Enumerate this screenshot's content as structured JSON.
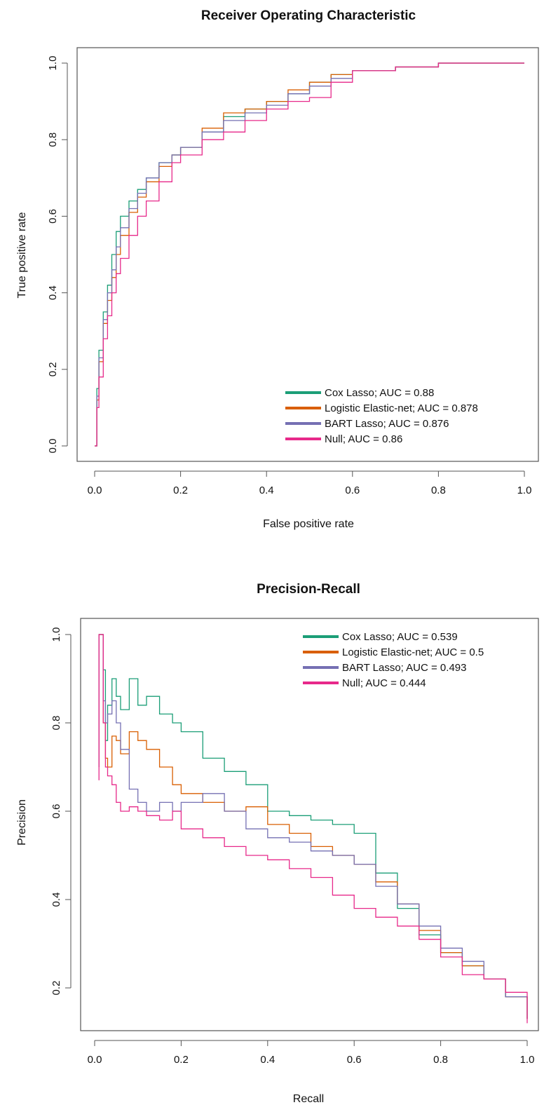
{
  "colors": {
    "cox": "#1b9e77",
    "logistic": "#d95f02",
    "bart": "#7570b3",
    "null": "#e7298a",
    "axis": "#555555"
  },
  "chart_data": [
    {
      "type": "line",
      "title": "Receiver Operating Characteristic",
      "xlabel": "False positive rate",
      "ylabel": "True positive rate",
      "xlim": [
        0,
        1
      ],
      "ylim": [
        0,
        1
      ],
      "xticks": [
        0,
        0.2,
        0.4,
        0.6,
        0.8,
        1
      ],
      "xtick_labels": [
        "0.0",
        "0.2",
        "0.4",
        "0.6",
        "0.8",
        "1.0"
      ],
      "yticks": [
        0,
        0.2,
        0.4,
        0.6,
        0.8,
        1
      ],
      "ytick_labels": [
        "0.0",
        "0.2",
        "0.4",
        "0.6",
        "0.8",
        "1.0"
      ],
      "grid": false,
      "legend": "bottom-right",
      "series": [
        {
          "name": "Cox Lasso; AUC = 0.88",
          "color_key": "cox",
          "x": [
            0,
            0.005,
            0.01,
            0.02,
            0.03,
            0.04,
            0.05,
            0.06,
            0.08,
            0.1,
            0.12,
            0.15,
            0.18,
            0.2,
            0.25,
            0.3,
            0.35,
            0.4,
            0.45,
            0.5,
            0.55,
            0.6,
            0.7,
            0.8,
            0.9,
            1
          ],
          "y": [
            0,
            0.15,
            0.25,
            0.35,
            0.42,
            0.5,
            0.56,
            0.6,
            0.64,
            0.67,
            0.7,
            0.74,
            0.76,
            0.78,
            0.82,
            0.86,
            0.88,
            0.9,
            0.92,
            0.95,
            0.97,
            0.98,
            0.99,
            1,
            1,
            1
          ]
        },
        {
          "name": "Logistic Elastic-net; AUC = 0.878",
          "color_key": "logistic",
          "x": [
            0,
            0.005,
            0.01,
            0.02,
            0.03,
            0.04,
            0.05,
            0.06,
            0.08,
            0.1,
            0.12,
            0.15,
            0.18,
            0.2,
            0.25,
            0.3,
            0.35,
            0.4,
            0.45,
            0.5,
            0.55,
            0.6,
            0.7,
            0.8,
            0.9,
            1
          ],
          "y": [
            0,
            0.12,
            0.22,
            0.32,
            0.38,
            0.44,
            0.5,
            0.55,
            0.61,
            0.65,
            0.69,
            0.73,
            0.76,
            0.78,
            0.83,
            0.87,
            0.88,
            0.9,
            0.93,
            0.95,
            0.97,
            0.98,
            0.99,
            1,
            1,
            1
          ]
        },
        {
          "name": "BART Lasso; AUC = 0.876",
          "color_key": "bart",
          "x": [
            0,
            0.005,
            0.01,
            0.02,
            0.03,
            0.04,
            0.05,
            0.06,
            0.08,
            0.1,
            0.12,
            0.15,
            0.18,
            0.2,
            0.25,
            0.3,
            0.35,
            0.4,
            0.45,
            0.5,
            0.55,
            0.6,
            0.7,
            0.8,
            0.9,
            1
          ],
          "y": [
            0,
            0.13,
            0.23,
            0.33,
            0.4,
            0.46,
            0.52,
            0.57,
            0.62,
            0.66,
            0.7,
            0.74,
            0.76,
            0.78,
            0.82,
            0.85,
            0.87,
            0.89,
            0.92,
            0.94,
            0.96,
            0.98,
            0.99,
            1,
            1,
            1
          ]
        },
        {
          "name": "Null; AUC = 0.86",
          "color_key": "null",
          "x": [
            0,
            0.005,
            0.01,
            0.02,
            0.03,
            0.04,
            0.05,
            0.06,
            0.08,
            0.1,
            0.12,
            0.15,
            0.18,
            0.2,
            0.25,
            0.3,
            0.35,
            0.4,
            0.45,
            0.5,
            0.55,
            0.6,
            0.7,
            0.8,
            0.9,
            1
          ],
          "y": [
            0,
            0.1,
            0.18,
            0.28,
            0.34,
            0.4,
            0.45,
            0.49,
            0.55,
            0.6,
            0.64,
            0.69,
            0.74,
            0.76,
            0.8,
            0.82,
            0.85,
            0.88,
            0.9,
            0.91,
            0.95,
            0.98,
            0.99,
            1,
            1,
            1
          ]
        }
      ]
    },
    {
      "type": "line",
      "title": "Precision-Recall",
      "xlabel": "Recall",
      "ylabel": "Precision",
      "xlim": [
        0,
        1
      ],
      "ylim": [
        0.1,
        1
      ],
      "xticks": [
        0,
        0.2,
        0.4,
        0.6,
        0.8,
        1
      ],
      "xtick_labels": [
        "0.0",
        "0.2",
        "0.4",
        "0.6",
        "0.8",
        "1.0"
      ],
      "yticks": [
        0.2,
        0.4,
        0.6,
        0.8,
        1
      ],
      "ytick_labels": [
        "0.2",
        "0.4",
        "0.6",
        "0.8",
        "1.0"
      ],
      "grid": false,
      "legend": "top-right",
      "series": [
        {
          "name": "Cox Lasso; AUC = 0.539",
          "color_key": "cox",
          "x": [
            0.01,
            0.01,
            0.015,
            0.02,
            0.025,
            0.03,
            0.04,
            0.05,
            0.06,
            0.08,
            0.1,
            0.12,
            0.15,
            0.18,
            0.2,
            0.25,
            0.3,
            0.35,
            0.4,
            0.45,
            0.5,
            0.55,
            0.6,
            0.65,
            0.7,
            0.75,
            0.8,
            0.85,
            0.9,
            0.95,
            1
          ],
          "y": [
            0.7,
            1,
            1,
            0.92,
            0.76,
            0.84,
            0.9,
            0.86,
            0.83,
            0.9,
            0.84,
            0.86,
            0.82,
            0.8,
            0.78,
            0.72,
            0.69,
            0.66,
            0.6,
            0.59,
            0.58,
            0.57,
            0.55,
            0.46,
            0.38,
            0.32,
            0.28,
            0.25,
            0.22,
            0.18,
            0.13
          ]
        },
        {
          "name": "Logistic Elastic-net; AUC = 0.5",
          "color_key": "logistic",
          "x": [
            0.01,
            0.01,
            0.015,
            0.02,
            0.025,
            0.03,
            0.04,
            0.05,
            0.06,
            0.08,
            0.1,
            0.12,
            0.15,
            0.18,
            0.2,
            0.25,
            0.3,
            0.35,
            0.4,
            0.45,
            0.5,
            0.55,
            0.6,
            0.65,
            0.7,
            0.75,
            0.8,
            0.85,
            0.9,
            0.95,
            1
          ],
          "y": [
            0.7,
            1,
            1,
            0.8,
            0.72,
            0.7,
            0.77,
            0.76,
            0.73,
            0.78,
            0.76,
            0.74,
            0.7,
            0.66,
            0.64,
            0.62,
            0.6,
            0.61,
            0.57,
            0.55,
            0.52,
            0.5,
            0.48,
            0.44,
            0.39,
            0.33,
            0.28,
            0.25,
            0.22,
            0.18,
            0.13
          ]
        },
        {
          "name": "BART Lasso; AUC = 0.493",
          "color_key": "bart",
          "x": [
            0.01,
            0.01,
            0.015,
            0.02,
            0.025,
            0.03,
            0.04,
            0.05,
            0.06,
            0.08,
            0.1,
            0.12,
            0.15,
            0.18,
            0.2,
            0.25,
            0.3,
            0.35,
            0.4,
            0.45,
            0.5,
            0.55,
            0.6,
            0.65,
            0.7,
            0.75,
            0.8,
            0.85,
            0.9,
            0.95,
            1
          ],
          "y": [
            0.7,
            1,
            1,
            0.85,
            0.8,
            0.82,
            0.85,
            0.8,
            0.74,
            0.65,
            0.62,
            0.6,
            0.62,
            0.6,
            0.62,
            0.64,
            0.6,
            0.56,
            0.54,
            0.53,
            0.51,
            0.5,
            0.48,
            0.43,
            0.39,
            0.34,
            0.29,
            0.26,
            0.22,
            0.18,
            0.13
          ]
        },
        {
          "name": "Null; AUC = 0.444",
          "color_key": "null",
          "x": [
            0.01,
            0.01,
            0.015,
            0.02,
            0.025,
            0.03,
            0.04,
            0.05,
            0.06,
            0.08,
            0.1,
            0.12,
            0.15,
            0.18,
            0.2,
            0.25,
            0.3,
            0.35,
            0.4,
            0.45,
            0.5,
            0.55,
            0.6,
            0.65,
            0.7,
            0.75,
            0.8,
            0.85,
            0.9,
            0.95,
            1
          ],
          "y": [
            0.67,
            1,
            1,
            0.8,
            0.7,
            0.68,
            0.66,
            0.62,
            0.6,
            0.61,
            0.6,
            0.59,
            0.58,
            0.6,
            0.56,
            0.54,
            0.52,
            0.5,
            0.49,
            0.47,
            0.45,
            0.41,
            0.38,
            0.36,
            0.34,
            0.31,
            0.27,
            0.23,
            0.22,
            0.19,
            0.12
          ]
        }
      ]
    }
  ]
}
